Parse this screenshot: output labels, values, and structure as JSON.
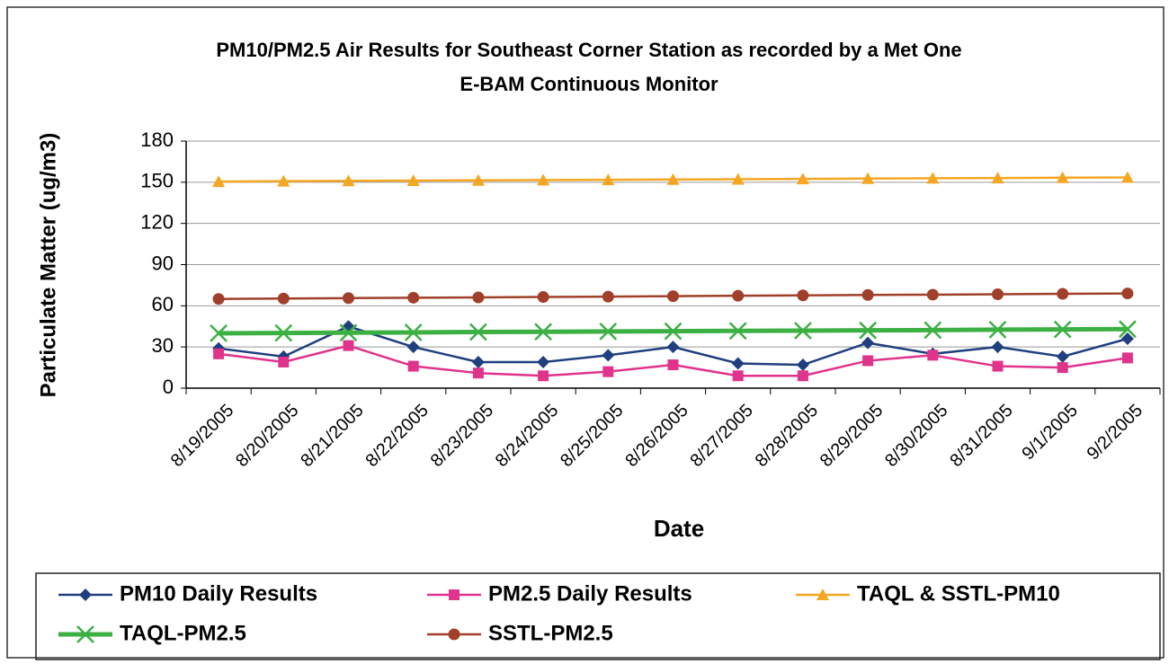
{
  "chart_data": {
    "type": "line",
    "title": "PM10/PM2.5 Air Results for Southeast Corner Station as recorded by a Met One",
    "subtitle": "E-BAM Continuous Monitor",
    "x_label": "Date",
    "y_label": "Particulate Matter (ug/m3)",
    "categories": [
      "8/19/2005",
      "8/20/2005",
      "8/21/2005",
      "8/22/2005",
      "8/23/2005",
      "8/24/2005",
      "8/25/2005",
      "8/26/2005",
      "8/27/2005",
      "8/28/2005",
      "8/29/2005",
      "8/30/2005",
      "8/31/2005",
      "9/1/2005",
      "9/2/2005"
    ],
    "series": [
      {
        "name": "PM10 Daily Results",
        "color": "#1f3f7f",
        "marker": "diamond",
        "values": [
          29,
          23,
          45,
          30,
          19,
          19,
          24,
          30,
          18,
          17,
          33,
          25,
          30,
          23,
          36
        ]
      },
      {
        "name": "PM2.5 Daily Results",
        "color": "#e0338c",
        "marker": "square",
        "values": [
          25,
          19,
          31,
          16,
          11,
          9,
          12,
          17,
          9,
          9,
          20,
          24,
          16,
          15,
          22
        ]
      },
      {
        "name": "TAQL & SSTL-PM10",
        "color": "#f5a623",
        "marker": "triangle",
        "values": [
          150.5,
          150.8,
          151,
          151.2,
          151.4,
          151.6,
          151.8,
          152,
          152.2,
          152.4,
          152.7,
          152.9,
          153.1,
          153.3,
          153.5
        ]
      },
      {
        "name": "TAQL-PM2.5",
        "color": "#3cb043",
        "marker": "x",
        "values": [
          40,
          40.2,
          40.4,
          40.6,
          40.9,
          41.1,
          41.3,
          41.5,
          41.7,
          41.9,
          42.1,
          42.3,
          42.6,
          42.8,
          43
        ]
      },
      {
        "name": "SSTL-PM2.5",
        "color": "#a0402a",
        "marker": "circle",
        "values": [
          65,
          65.3,
          65.6,
          65.9,
          66.1,
          66.4,
          66.7,
          67,
          67.3,
          67.6,
          67.9,
          68.1,
          68.4,
          68.7,
          69
        ]
      }
    ],
    "ylim": [
      0,
      180
    ],
    "yticks": [
      0,
      30,
      60,
      90,
      120,
      150,
      180
    ],
    "grid": true,
    "legend": "bottom"
  }
}
